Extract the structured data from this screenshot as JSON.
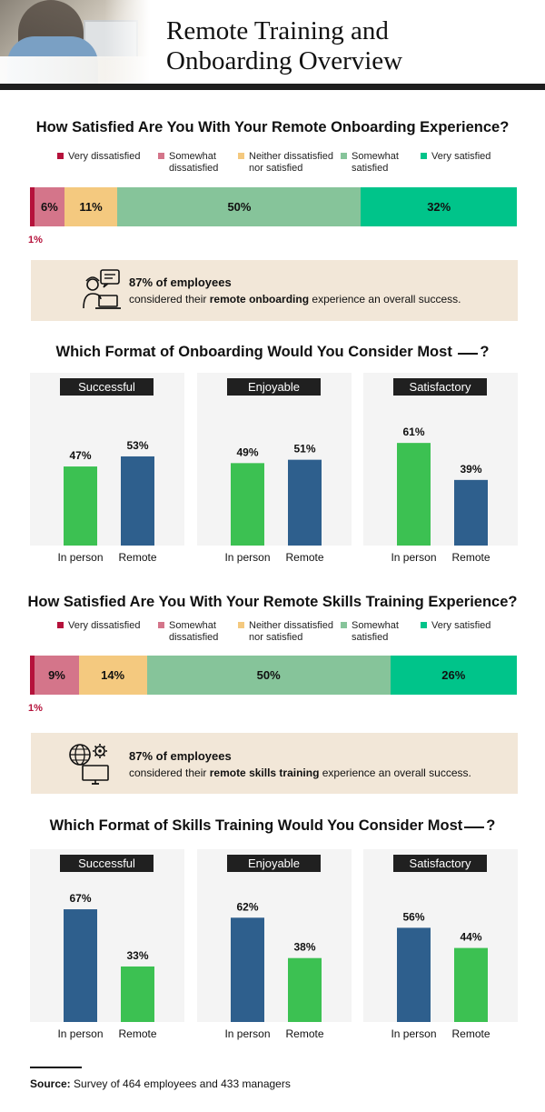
{
  "header": {
    "title_line1": "Remote Training and",
    "title_line2": "Onboarding Overview"
  },
  "colors": {
    "very_dissatisfied": "#b5123b",
    "somewhat_dissatisfied": "#d4758a",
    "neutral": "#f4c97f",
    "somewhat_satisfied": "#86c49a",
    "very_satisfied": "#00c48a",
    "in_person_green": "#3cc152",
    "remote_blue": "#2e5f8d"
  },
  "legend": {
    "very_dissatisfied": "Very dissatisfied",
    "somewhat_dissatisfied_1": "Somewhat",
    "somewhat_dissatisfied_2": "dissatisfied",
    "neutral_1": "Neither dissatisfied",
    "neutral_2": "nor satisfied",
    "somewhat_satisfied_1": "Somewhat",
    "somewhat_satisfied_2": "satisfied",
    "very_satisfied": "Very satisfied"
  },
  "sections": {
    "q1": "How Satisfied Are You With Your Remote Onboarding Experience?",
    "q2_before": "Which Format of Onboarding Would You Consider Most",
    "q2_after": "?",
    "q3": "How Satisfied Are You With Your Remote Skills Training Experience?",
    "q4_before": "Which Format of Skills Training Would You Consider Most",
    "q4_after": "?"
  },
  "callouts": {
    "onboarding": {
      "stat": "87% of employees",
      "pre": "considered their ",
      "bold": "remote onboarding",
      "post": " experience an overall success.",
      "icon": "person-laptop-chat-icon"
    },
    "training": {
      "stat": "87% of employees",
      "pre": "considered their ",
      "bold": "remote skills training",
      "post": " experience an overall success.",
      "icon": "globe-gear-monitor-icon"
    }
  },
  "chart_data": [
    {
      "type": "bar",
      "stacked": true,
      "orientation": "horizontal",
      "title": "How Satisfied Are You With Your Remote Onboarding Experience?",
      "series": [
        {
          "name": "Very dissatisfied",
          "values": [
            1
          ],
          "label": "1%"
        },
        {
          "name": "Somewhat dissatisfied",
          "values": [
            6
          ],
          "label": "6%"
        },
        {
          "name": "Neither dissatisfied nor satisfied",
          "values": [
            11
          ],
          "label": "11%"
        },
        {
          "name": "Somewhat satisfied",
          "values": [
            50
          ],
          "label": "50%"
        },
        {
          "name": "Very satisfied",
          "values": [
            32
          ],
          "label": "32%"
        }
      ]
    },
    {
      "type": "bar",
      "title": "Which Format of Onboarding Would You Consider Most ___?",
      "panels": [
        {
          "caption": "Successful",
          "categories": [
            "In person",
            "Remote"
          ],
          "values": [
            47,
            53
          ],
          "labels": [
            "47%",
            "53%"
          ]
        },
        {
          "caption": "Enjoyable",
          "categories": [
            "In person",
            "Remote"
          ],
          "values": [
            49,
            51
          ],
          "labels": [
            "49%",
            "51%"
          ]
        },
        {
          "caption": "Satisfactory",
          "categories": [
            "In person",
            "Remote"
          ],
          "values": [
            61,
            39
          ],
          "labels": [
            "61%",
            "39%"
          ]
        }
      ]
    },
    {
      "type": "bar",
      "stacked": true,
      "orientation": "horizontal",
      "title": "How Satisfied Are You With Your Remote Skills Training Experience?",
      "series": [
        {
          "name": "Very dissatisfied",
          "values": [
            1
          ],
          "label": "1%"
        },
        {
          "name": "Somewhat dissatisfied",
          "values": [
            9
          ],
          "label": "9%"
        },
        {
          "name": "Neither dissatisfied nor satisfied",
          "values": [
            14
          ],
          "label": "14%"
        },
        {
          "name": "Somewhat satisfied",
          "values": [
            50
          ],
          "label": "50%"
        },
        {
          "name": "Very satisfied",
          "values": [
            26
          ],
          "label": "26%"
        }
      ]
    },
    {
      "type": "bar",
      "title": "Which Format of Skills Training Would You Consider Most ___?",
      "panels": [
        {
          "caption": "Successful",
          "categories": [
            "In person",
            "Remote"
          ],
          "values": [
            67,
            33
          ],
          "labels": [
            "67%",
            "33%"
          ]
        },
        {
          "caption": "Enjoyable",
          "categories": [
            "In person",
            "Remote"
          ],
          "values": [
            62,
            38
          ],
          "labels": [
            "62%",
            "38%"
          ]
        },
        {
          "caption": "Satisfactory",
          "categories": [
            "In person",
            "Remote"
          ],
          "values": [
            56,
            44
          ],
          "labels": [
            "56%",
            "44%"
          ]
        }
      ]
    }
  ],
  "source": {
    "label": "Source:",
    "text": " Survey of 464 employees and 433 managers"
  }
}
